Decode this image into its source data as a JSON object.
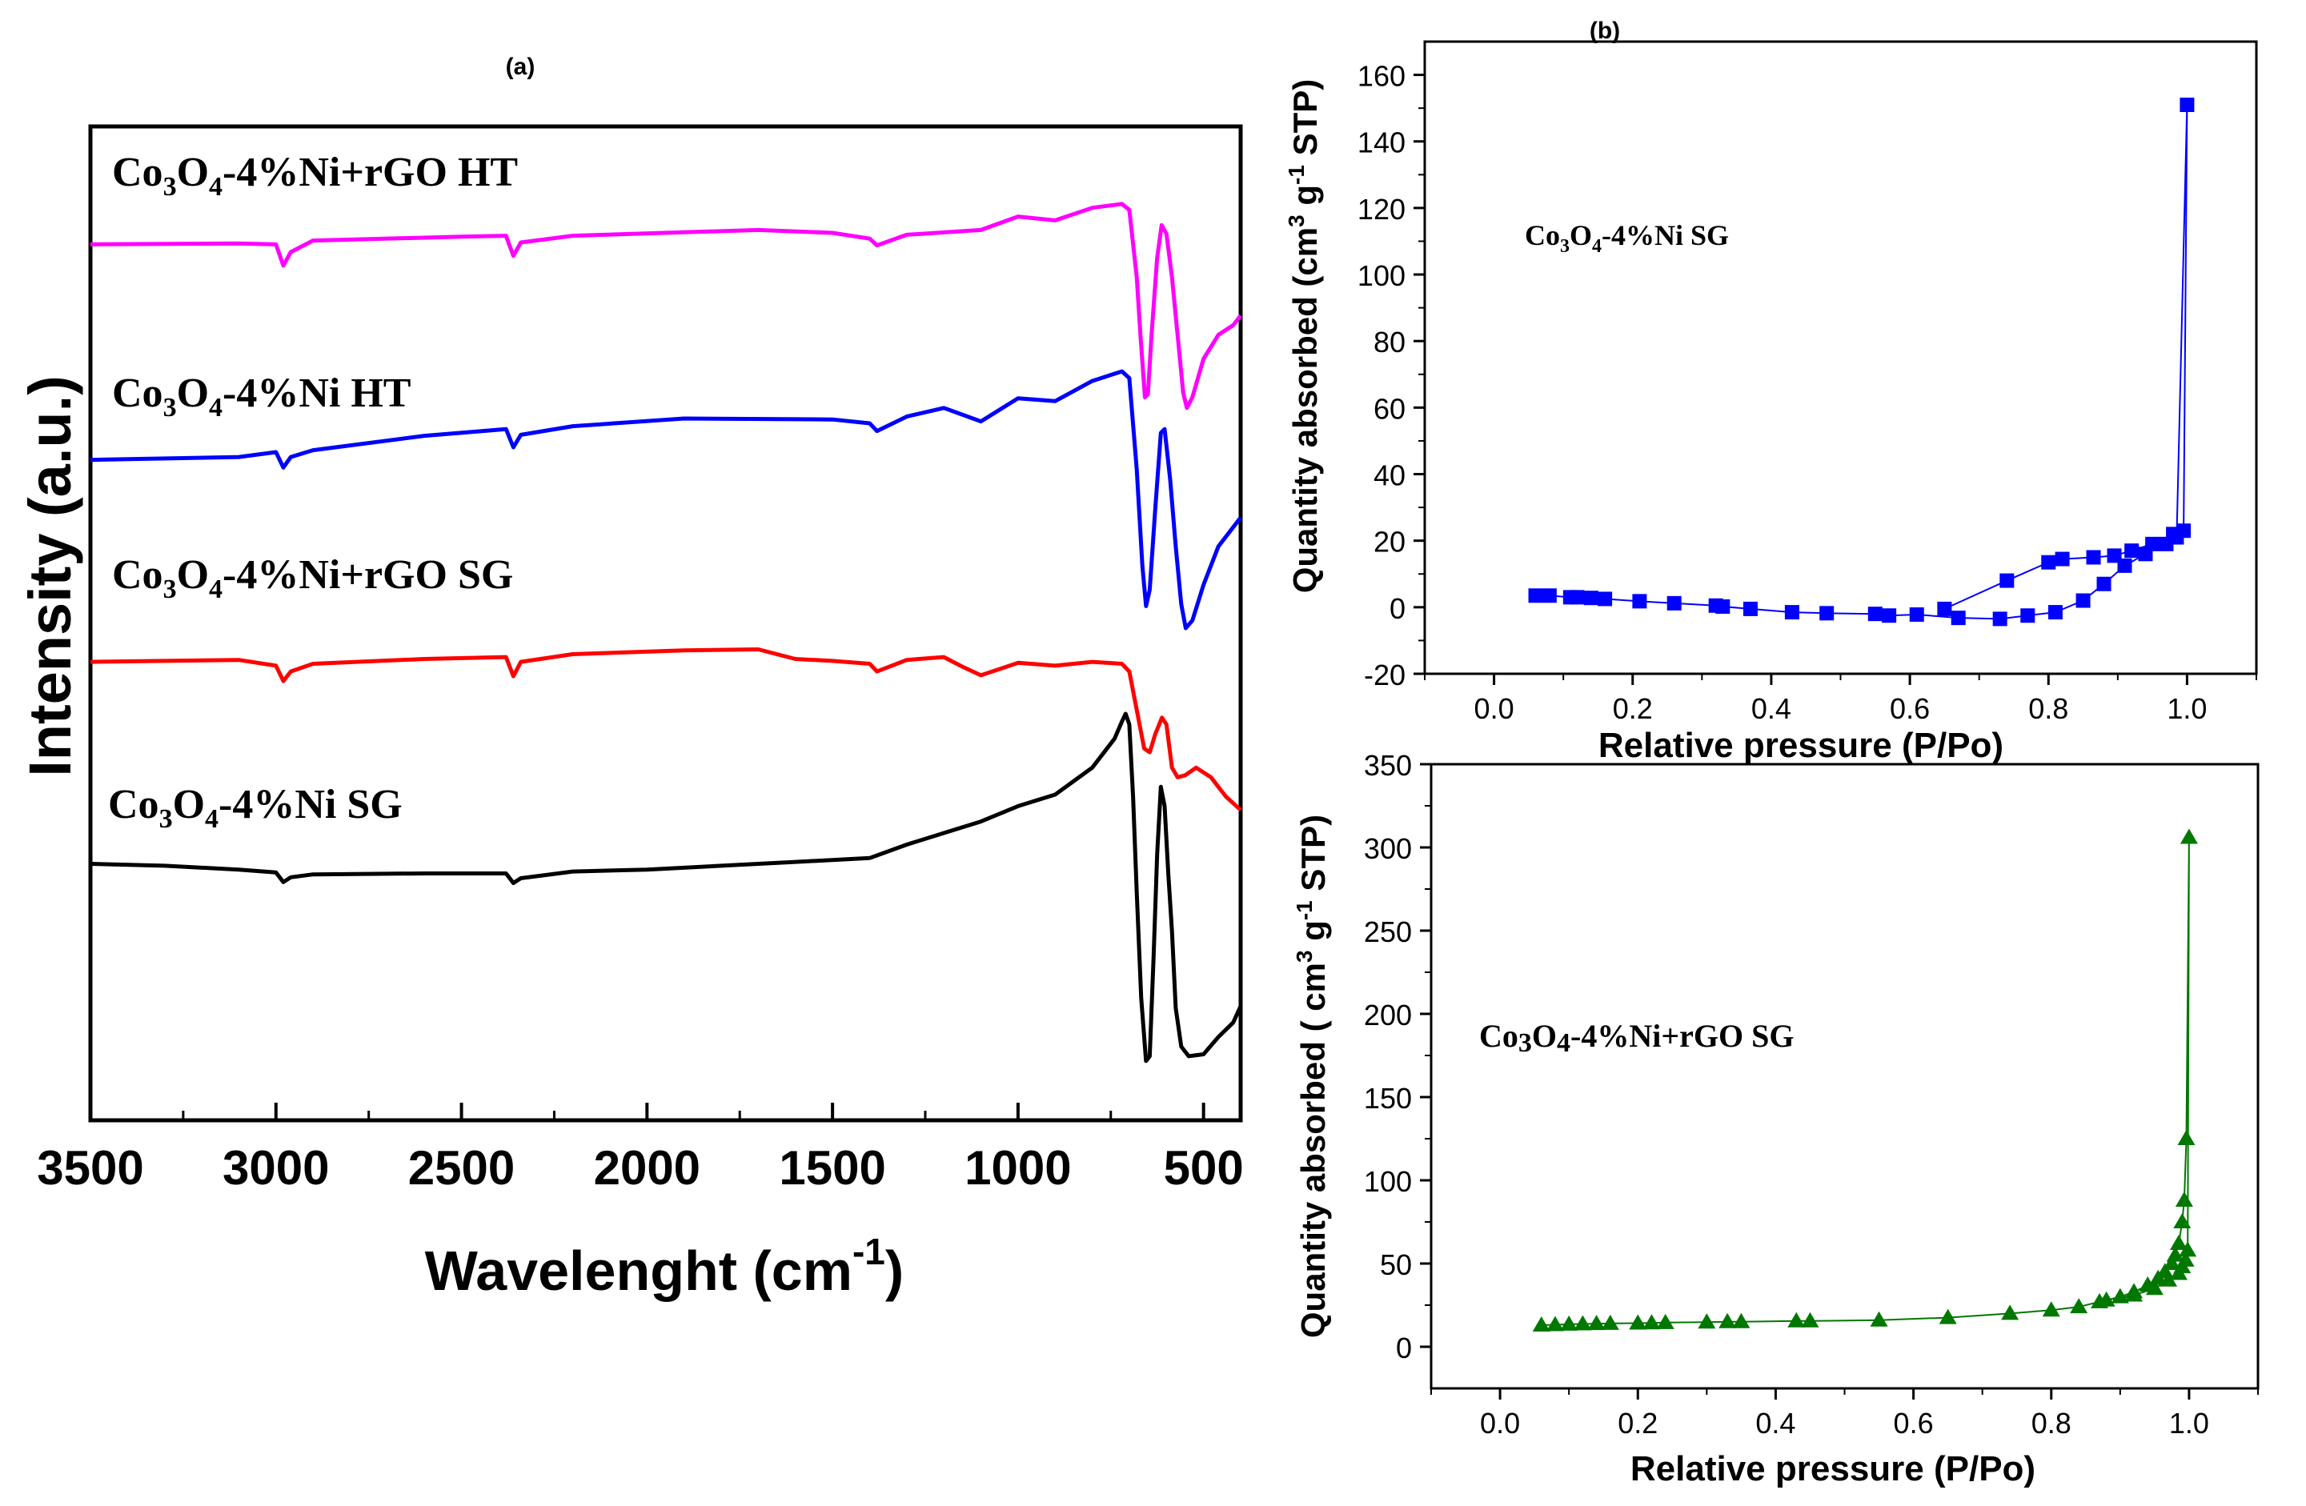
{
  "panel_labels": {
    "a": "(a)",
    "b": "(b)"
  },
  "chart_data": [
    {
      "id": "ftir",
      "type": "line",
      "title": "(a)",
      "xlabel": "Wavelenght (cm",
      "xlabel_sup": "-1",
      "xlabel_end": ")",
      "ylabel": "Intensity (a.u.)",
      "xlim": [
        3500,
        400
      ],
      "ylim": [
        0,
        100
      ],
      "x_ticks": [
        "3500",
        "3000",
        "2500",
        "2000",
        "1500",
        "1000",
        "500"
      ],
      "series": [
        {
          "name": "Co3O4-4%Ni+rGO HT",
          "label_base": "Co",
          "sub1": "3",
          "label_mid": "O",
          "sub2": "4",
          "label_end": "-4%Ni+rGO HT",
          "color": "#ff00ff",
          "points": [
            [
              3500,
              89.4
            ],
            [
              3100,
              89.5
            ],
            [
              3000,
              89.4
            ],
            [
              2980,
              87.2
            ],
            [
              2960,
              88.6
            ],
            [
              2900,
              89.8
            ],
            [
              2500,
              90.2
            ],
            [
              2380,
              90.3
            ],
            [
              2360,
              88.2
            ],
            [
              2340,
              89.6
            ],
            [
              2200,
              90.3
            ],
            [
              1700,
              90.9
            ],
            [
              1500,
              90.6
            ],
            [
              1400,
              90.0
            ],
            [
              1380,
              89.3
            ],
            [
              1300,
              90.4
            ],
            [
              1100,
              90.9
            ],
            [
              1000,
              92.3
            ],
            [
              900,
              91.9
            ],
            [
              800,
              93.2
            ],
            [
              720,
              93.6
            ],
            [
              700,
              93.0
            ],
            [
              680,
              86.0
            ],
            [
              670,
              80.0
            ],
            [
              658,
              73.5
            ],
            [
              650,
              73.8
            ],
            [
              640,
              80.0
            ],
            [
              625,
              88.0
            ],
            [
              613,
              91.4
            ],
            [
              600,
              90.5
            ],
            [
              585,
              86.0
            ],
            [
              570,
              80.0
            ],
            [
              555,
              74.0
            ],
            [
              545,
              72.4
            ],
            [
              530,
              73.5
            ],
            [
              500,
              77.5
            ],
            [
              460,
              80.0
            ],
            [
              420,
              81.0
            ],
            [
              400,
              82.0
            ]
          ]
        },
        {
          "name": "Co3O4-4%Ni HT",
          "label_base": "Co",
          "sub1": "3",
          "label_mid": "O",
          "sub2": "4",
          "label_end": "-4%Ni HT",
          "color": "#0000ff",
          "points": [
            [
              3500,
              67.0
            ],
            [
              3100,
              67.3
            ],
            [
              3000,
              67.8
            ],
            [
              2980,
              66.2
            ],
            [
              2960,
              67.3
            ],
            [
              2900,
              68.0
            ],
            [
              2600,
              69.5
            ],
            [
              2380,
              70.2
            ],
            [
              2360,
              68.3
            ],
            [
              2340,
              69.6
            ],
            [
              2200,
              70.5
            ],
            [
              1900,
              71.3
            ],
            [
              1500,
              71.2
            ],
            [
              1400,
              70.8
            ],
            [
              1380,
              70.0
            ],
            [
              1300,
              71.5
            ],
            [
              1200,
              72.4
            ],
            [
              1100,
              71.0
            ],
            [
              1000,
              73.4
            ],
            [
              900,
              73.1
            ],
            [
              800,
              75.2
            ],
            [
              720,
              76.2
            ],
            [
              700,
              75.5
            ],
            [
              680,
              66.0
            ],
            [
              665,
              56.0
            ],
            [
              655,
              51.8
            ],
            [
              645,
              53.5
            ],
            [
              630,
              62.0
            ],
            [
              615,
              69.8
            ],
            [
              605,
              70.2
            ],
            [
              590,
              65.0
            ],
            [
              575,
              58.0
            ],
            [
              560,
              52.0
            ],
            [
              548,
              49.5
            ],
            [
              530,
              50.3
            ],
            [
              500,
              54.0
            ],
            [
              460,
              58.0
            ],
            [
              420,
              60.0
            ],
            [
              400,
              61.0
            ]
          ]
        },
        {
          "name": "Co3O4-4%Ni+rGO SG",
          "label_base": "Co",
          "sub1": "3",
          "label_mid": "O",
          "sub2": "4",
          "label_end": "-4%Ni+rGO SG",
          "color": "#ff0000",
          "points": [
            [
              3500,
              46.0
            ],
            [
              3100,
              46.2
            ],
            [
              3000,
              45.6
            ],
            [
              2980,
              44.0
            ],
            [
              2960,
              45.0
            ],
            [
              2900,
              45.8
            ],
            [
              2600,
              46.3
            ],
            [
              2380,
              46.5
            ],
            [
              2360,
              44.5
            ],
            [
              2340,
              46.0
            ],
            [
              2200,
              46.8
            ],
            [
              1900,
              47.2
            ],
            [
              1700,
              47.3
            ],
            [
              1600,
              46.3
            ],
            [
              1500,
              46.1
            ],
            [
              1400,
              45.8
            ],
            [
              1380,
              45.0
            ],
            [
              1300,
              46.2
            ],
            [
              1200,
              46.5
            ],
            [
              1150,
              45.5
            ],
            [
              1100,
              44.6
            ],
            [
              1000,
              45.9
            ],
            [
              900,
              45.6
            ],
            [
              800,
              46.0
            ],
            [
              720,
              45.8
            ],
            [
              700,
              45.0
            ],
            [
              680,
              41.0
            ],
            [
              660,
              37.0
            ],
            [
              645,
              36.6
            ],
            [
              630,
              38.5
            ],
            [
              612,
              40.2
            ],
            [
              600,
              39.5
            ],
            [
              585,
              35.0
            ],
            [
              570,
              34.0
            ],
            [
              550,
              34.2
            ],
            [
              520,
              35.0
            ],
            [
              480,
              34.0
            ],
            [
              440,
              32.0
            ],
            [
              400,
              30.6
            ]
          ]
        },
        {
          "name": "Co3O4-4%Ni SG",
          "label_base": "Co",
          "sub1": "3",
          "label_mid": "O",
          "sub2": "4",
          "label_end": "-4%Ni SG",
          "color": "#000000",
          "points": [
            [
              3500,
              25.0
            ],
            [
              3300,
              24.8
            ],
            [
              3100,
              24.4
            ],
            [
              3000,
              24.1
            ],
            [
              2980,
              23.1
            ],
            [
              2960,
              23.6
            ],
            [
              2900,
              23.9
            ],
            [
              2600,
              24.0
            ],
            [
              2380,
              24.0
            ],
            [
              2360,
              23.0
            ],
            [
              2340,
              23.5
            ],
            [
              2200,
              24.2
            ],
            [
              2000,
              24.4
            ],
            [
              1800,
              24.8
            ],
            [
              1600,
              25.2
            ],
            [
              1400,
              25.6
            ],
            [
              1300,
              27.0
            ],
            [
              1200,
              28.2
            ],
            [
              1100,
              29.4
            ],
            [
              1000,
              31.0
            ],
            [
              900,
              32.2
            ],
            [
              800,
              35.0
            ],
            [
              740,
              38.0
            ],
            [
              720,
              39.8
            ],
            [
              710,
              40.6
            ],
            [
              700,
              39.5
            ],
            [
              690,
              32.0
            ],
            [
              680,
              22.0
            ],
            [
              668,
              11.0
            ],
            [
              655,
              4.5
            ],
            [
              645,
              5.0
            ],
            [
              635,
              15.0
            ],
            [
              625,
              26.0
            ],
            [
              615,
              33.0
            ],
            [
              605,
              31.0
            ],
            [
              595,
              24.0
            ],
            [
              585,
              18.0
            ],
            [
              575,
              10.0
            ],
            [
              560,
              6.0
            ],
            [
              540,
              5.0
            ],
            [
              500,
              5.2
            ],
            [
              460,
              7.0
            ],
            [
              420,
              8.5
            ],
            [
              400,
              10.2
            ]
          ]
        }
      ]
    },
    {
      "id": "bet-ni-sg",
      "type": "line",
      "title": "(b)",
      "xlabel": "Relative pressure (P/Po)",
      "ylabel_a": "Quantity absorbed  (cm",
      "ylabel_sup1": "3",
      "ylabel_b": " g",
      "ylabel_sup2": "-1",
      "ylabel_c": " STP)",
      "xlim": [
        -0.1,
        1.1
      ],
      "ylim": [
        -20,
        170
      ],
      "x_ticks": [
        "0.0",
        "0.2",
        "0.4",
        "0.6",
        "0.8",
        "1.0"
      ],
      "y_ticks": [
        "-20",
        "0",
        "20",
        "40",
        "60",
        "80",
        "100",
        "120",
        "140",
        "160"
      ],
      "annotation_base": "Co",
      "annotation_sub1": "3",
      "annotation_mid": "O",
      "annotation_sub2": "4",
      "annotation_end": "-4%Ni SG",
      "series": [
        {
          "name": "Co3O4-4%Ni SG",
          "color": "#0000ff",
          "marker": "square",
          "points": [
            [
              0.06,
              3.5
            ],
            [
              0.08,
              3.5
            ],
            [
              0.11,
              3.0
            ],
            [
              0.12,
              3.0
            ],
            [
              0.14,
              2.8
            ],
            [
              0.16,
              2.5
            ],
            [
              0.21,
              1.8
            ],
            [
              0.26,
              1.2
            ],
            [
              0.32,
              0.5
            ],
            [
              0.33,
              0.2
            ],
            [
              0.37,
              -0.5
            ],
            [
              0.43,
              -1.5
            ],
            [
              0.48,
              -1.8
            ],
            [
              0.55,
              -2.0
            ],
            [
              0.57,
              -2.5
            ],
            [
              0.61,
              -2.2
            ],
            [
              0.67,
              -3.2
            ],
            [
              0.73,
              -3.5
            ],
            [
              0.77,
              -2.5
            ],
            [
              0.81,
              -1.5
            ],
            [
              0.85,
              2.0
            ],
            [
              0.88,
              7.0
            ],
            [
              0.91,
              12.5
            ],
            [
              0.94,
              16.0
            ],
            [
              0.97,
              19.0
            ],
            [
              0.985,
              21.0
            ],
            [
              1.0,
              151.0
            ],
            [
              0.995,
              23.0
            ],
            [
              0.98,
              22.0
            ],
            [
              0.95,
              19.0
            ],
            [
              0.92,
              17.0
            ],
            [
              0.895,
              15.5
            ],
            [
              0.865,
              15.0
            ],
            [
              0.82,
              14.5
            ],
            [
              0.8,
              13.5
            ],
            [
              0.74,
              8.0
            ],
            [
              0.65,
              -0.5
            ]
          ]
        }
      ]
    },
    {
      "id": "bet-ni-rgo-sg",
      "type": "line",
      "title": "",
      "xlabel": "Relative pressure (P/Po)",
      "ylabel_a": "Quantity absorbed ( cm",
      "ylabel_sup1": "3",
      "ylabel_b": " g",
      "ylabel_sup2": "-1",
      "ylabel_c": " STP)",
      "xlim": [
        -0.1,
        1.1
      ],
      "ylim": [
        -25,
        350
      ],
      "x_ticks": [
        "0.0",
        "0.2",
        "0.4",
        "0.6",
        "0.8",
        "1.0"
      ],
      "y_ticks": [
        "0",
        "50",
        "100",
        "150",
        "200",
        "250",
        "300",
        "350"
      ],
      "annotation_base": "Co",
      "annotation_sub1": "3",
      "annotation_mid": "O",
      "annotation_sub2": "4",
      "annotation_end": "-4%Ni+rGO SG",
      "series": [
        {
          "name": "Co3O4-4%Ni+rGO SG",
          "color": "#007800",
          "marker": "triangle",
          "points": [
            [
              0.06,
              13.0
            ],
            [
              0.08,
              13.2
            ],
            [
              0.1,
              13.5
            ],
            [
              0.12,
              13.7
            ],
            [
              0.14,
              13.9
            ],
            [
              0.16,
              14.0
            ],
            [
              0.2,
              14.2
            ],
            [
              0.22,
              14.3
            ],
            [
              0.24,
              14.5
            ],
            [
              0.3,
              14.8
            ],
            [
              0.33,
              15.0
            ],
            [
              0.35,
              15.0
            ],
            [
              0.43,
              15.5
            ],
            [
              0.45,
              15.5
            ],
            [
              0.55,
              16.0
            ],
            [
              0.65,
              17.5
            ],
            [
              0.74,
              20.0
            ],
            [
              0.8,
              22.0
            ],
            [
              0.84,
              24.0
            ],
            [
              0.87,
              27.0
            ],
            [
              0.9,
              30.0
            ],
            [
              0.92,
              33.0
            ],
            [
              0.94,
              37.0
            ],
            [
              0.955,
              41.0
            ],
            [
              0.965,
              45.0
            ],
            [
              0.975,
              50.0
            ],
            [
              0.98,
              55.0
            ],
            [
              0.985,
              62.0
            ],
            [
              0.99,
              75.0
            ],
            [
              0.993,
              88.0
            ],
            [
              0.996,
              125.0
            ],
            [
              1.0,
              306.0
            ],
            [
              0.998,
              58.0
            ],
            [
              0.995,
              52.0
            ],
            [
              0.99,
              48.0
            ],
            [
              0.985,
              44.0
            ],
            [
              0.97,
              40.0
            ],
            [
              0.95,
              35.0
            ],
            [
              0.92,
              31.0
            ],
            [
              0.88,
              28.0
            ]
          ]
        }
      ]
    }
  ]
}
